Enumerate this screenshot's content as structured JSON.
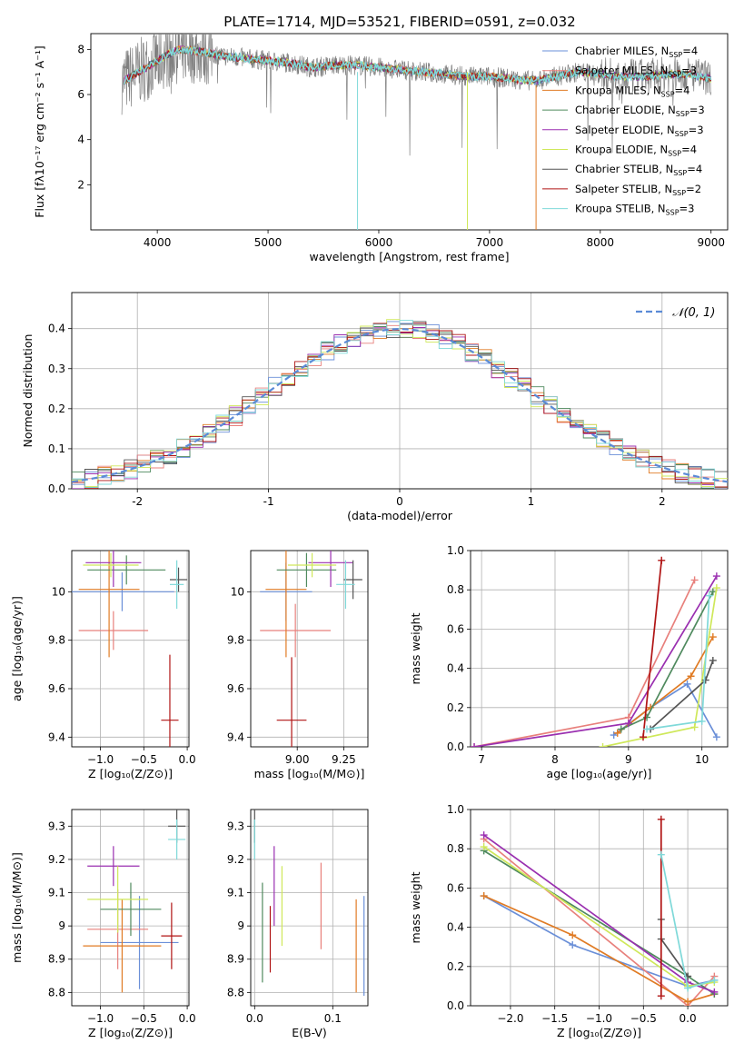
{
  "title": "PLATE=1714, MJD=53521, FIBERID=0591, z=0.032",
  "models": [
    {
      "name": "Chabrier MILES",
      "nssp": "4",
      "color": "#6a8fd8"
    },
    {
      "name": "Salpeter MILES",
      "nssp": "3",
      "color": "#e8807c"
    },
    {
      "name": "Kroupa MILES",
      "nssp": "4",
      "color": "#e07b24"
    },
    {
      "name": "Chabrier ELODIE",
      "nssp": "3",
      "color": "#4f8a5e"
    },
    {
      "name": "Salpeter ELODIE",
      "nssp": "3",
      "color": "#9a2fb0"
    },
    {
      "name": "Kroupa ELODIE",
      "nssp": "4",
      "color": "#cfe85a"
    },
    {
      "name": "Chabrier STELIB",
      "nssp": "4",
      "color": "#555555"
    },
    {
      "name": "Salpeter STELIB",
      "nssp": "2",
      "color": "#b01414"
    },
    {
      "name": "Kroupa STELIB",
      "nssp": "3",
      "color": "#7fd9d9"
    }
  ],
  "chart_data": [
    {
      "id": "spectrum",
      "type": "line",
      "xlabel": "wavelength [Angstrom, rest frame]",
      "ylabel": "Flux [fλ10⁻¹⁷ erg cm⁻² s⁻¹ A⁻¹]",
      "xlim": [
        3400,
        9150
      ],
      "ylim": [
        0.0,
        8.7
      ],
      "xticks": [
        4000,
        5000,
        6000,
        7000,
        8000,
        9000
      ],
      "yticks": [
        2,
        4,
        6,
        8
      ],
      "legend": "top-right",
      "x": [
        3700,
        3800,
        3900,
        4000,
        4100,
        4200,
        4400,
        4600,
        4800,
        5000,
        5200,
        5400,
        5600,
        5800,
        6000,
        6200,
        6400,
        6600,
        6800,
        7000,
        7200,
        7400,
        7600,
        7800,
        8000,
        8200,
        8400,
        8600,
        8800,
        9000
      ],
      "model_flux": [
        6.6,
        6.9,
        7.2,
        7.5,
        7.8,
        8.0,
        7.9,
        7.7,
        7.6,
        7.5,
        7.4,
        7.2,
        7.3,
        7.3,
        7.2,
        7.1,
        7.0,
        6.9,
        6.8,
        6.8,
        6.7,
        6.6,
        6.8,
        7.0,
        6.9,
        6.8,
        6.8,
        6.9,
        6.9,
        6.7
      ]
    },
    {
      "id": "residuals",
      "type": "bar",
      "xlabel": "(data-model)/error",
      "ylabel": "Normed distribution",
      "xlim": [
        -2.5,
        2.5
      ],
      "ylim": [
        0,
        0.49
      ],
      "xticks": [
        -2,
        -1,
        0,
        1,
        2
      ],
      "yticks": [
        0.0,
        0.1,
        0.2,
        0.3,
        0.4
      ],
      "legend_label": "𝒩(0, 1)",
      "legend": "top-right",
      "grid": true
    },
    {
      "id": "age_vs_Z",
      "type": "scatter",
      "xlabel": "Z [log₁₀(Z/Z⊙)]",
      "ylabel": "age  [log₁₀(age/yr)]",
      "xlim": [
        -1.33,
        0.02
      ],
      "ylim": [
        9.36,
        10.17
      ],
      "xticks": [
        -1.0,
        -0.5,
        0.0
      ],
      "xticklabels": [
        "−1.0",
        "−0.5",
        "0.0"
      ],
      "yticks": [
        9.4,
        9.6,
        9.8,
        10.0
      ],
      "grid": true,
      "points": [
        {
          "model": 0,
          "x": -0.75,
          "y": 10.0,
          "xerr": 0.6,
          "yerr": 0.08
        },
        {
          "model": 1,
          "x": -0.85,
          "y": 9.84,
          "xerr": 0.4,
          "yerr": 0.08
        },
        {
          "model": 2,
          "x": -0.9,
          "y": 10.01,
          "xerr": 0.35,
          "yerr": 0.28
        },
        {
          "model": 3,
          "x": -0.7,
          "y": 10.09,
          "xerr": 0.45,
          "yerr": 0.06
        },
        {
          "model": 4,
          "x": -0.85,
          "y": 10.12,
          "xerr": 0.32,
          "yerr": 0.1
        },
        {
          "model": 5,
          "x": -0.88,
          "y": 10.11,
          "xerr": 0.32,
          "yerr": 0.05
        },
        {
          "model": 6,
          "x": -0.1,
          "y": 10.05,
          "xerr": 0.1,
          "yerr": 0.05
        },
        {
          "model": 7,
          "x": -0.2,
          "y": 9.47,
          "xerr": 0.1,
          "yerr": 0.27
        },
        {
          "model": 8,
          "x": -0.12,
          "y": 10.03,
          "xerr": 0.08,
          "yerr": 0.1
        }
      ]
    },
    {
      "id": "age_vs_mass",
      "type": "scatter",
      "xlabel": "mass [log₁₀(M/M⊙)]",
      "ylabel": "",
      "xlim": [
        8.75,
        9.38
      ],
      "ylim": [
        9.36,
        10.17
      ],
      "xticks": [
        9.0,
        9.25
      ],
      "xticklabels": [
        "9.00",
        "9.25"
      ],
      "yticks": [
        9.4,
        9.6,
        9.8,
        10.0
      ],
      "grid": true,
      "points": [
        {
          "model": 0,
          "x": 8.94,
          "y": 10.0,
          "xerr": 0.14,
          "yerr": 0.12
        },
        {
          "model": 1,
          "x": 8.99,
          "y": 9.84,
          "xerr": 0.19,
          "yerr": 0.11
        },
        {
          "model": 2,
          "x": 8.94,
          "y": 10.01,
          "xerr": 0.11,
          "yerr": 0.28
        },
        {
          "model": 3,
          "x": 9.05,
          "y": 10.09,
          "xerr": 0.16,
          "yerr": 0.07
        },
        {
          "model": 4,
          "x": 9.18,
          "y": 10.12,
          "xerr": 0.12,
          "yerr": 0.1
        },
        {
          "model": 5,
          "x": 9.08,
          "y": 10.11,
          "xerr": 0.13,
          "yerr": 0.05
        },
        {
          "model": 6,
          "x": 9.3,
          "y": 10.05,
          "xerr": 0.05,
          "yerr": 0.08
        },
        {
          "model": 7,
          "x": 8.97,
          "y": 9.47,
          "xerr": 0.08,
          "yerr": 0.26
        },
        {
          "model": 8,
          "x": 9.26,
          "y": 10.03,
          "xerr": 0.05,
          "yerr": 0.1
        }
      ]
    },
    {
      "id": "weight_vs_age",
      "type": "line",
      "xlabel": "age  [log₁₀(age/yr)]",
      "ylabel": "mass weight",
      "xlim": [
        6.85,
        10.35
      ],
      "ylim": [
        0.0,
        1.0
      ],
      "xticks": [
        7,
        8,
        9,
        10
      ],
      "yticks": [
        0.0,
        0.2,
        0.4,
        0.6,
        0.8,
        1.0
      ],
      "grid": true,
      "series": [
        {
          "model": 0,
          "x": [
            8.8,
            9.3,
            9.8,
            10.2
          ],
          "y": [
            0.06,
            0.2,
            0.32,
            0.05
          ]
        },
        {
          "model": 1,
          "x": [
            6.9,
            9.0,
            9.9
          ],
          "y": [
            0.0,
            0.15,
            0.85
          ]
        },
        {
          "model": 2,
          "x": [
            8.85,
            9.3,
            9.85,
            10.15
          ],
          "y": [
            0.07,
            0.2,
            0.36,
            0.56
          ]
        },
        {
          "model": 3,
          "x": [
            8.9,
            9.25,
            10.15
          ],
          "y": [
            0.09,
            0.15,
            0.79
          ]
        },
        {
          "model": 4,
          "x": [
            6.9,
            9.0,
            10.2
          ],
          "y": [
            0.0,
            0.12,
            0.87
          ]
        },
        {
          "model": 5,
          "x": [
            8.65,
            9.9,
            10.2
          ],
          "y": [
            0.0,
            0.1,
            0.81
          ]
        },
        {
          "model": 6,
          "x": [
            9.3,
            10.05,
            10.15
          ],
          "y": [
            0.09,
            0.34,
            0.44
          ]
        },
        {
          "model": 7,
          "x": [
            9.2,
            9.45
          ],
          "y": [
            0.05,
            0.95
          ]
        },
        {
          "model": 8,
          "x": [
            9.25,
            10.0,
            10.1
          ],
          "y": [
            0.09,
            0.13,
            0.77
          ]
        }
      ]
    },
    {
      "id": "mass_vs_Z",
      "type": "scatter",
      "xlabel": "Z [log₁₀(Z/Z⊙)]",
      "ylabel": "mass [log₁₀(M/M⊙)]",
      "xlim": [
        -1.33,
        0.02
      ],
      "ylim": [
        8.76,
        9.35
      ],
      "xticks": [
        -1.0,
        -0.5,
        0.0
      ],
      "xticklabels": [
        "−1.0",
        "−0.5",
        "0.0"
      ],
      "yticks": [
        8.8,
        8.9,
        9.0,
        9.1,
        9.2,
        9.3
      ],
      "grid": true,
      "points": [
        {
          "model": 0,
          "x": -0.55,
          "y": 8.95,
          "xerr": 0.45,
          "yerr": 0.14
        },
        {
          "model": 1,
          "x": -0.8,
          "y": 8.99,
          "xerr": 0.35,
          "yerr": 0.12
        },
        {
          "model": 2,
          "x": -0.75,
          "y": 8.94,
          "xerr": 0.45,
          "yerr": 0.14
        },
        {
          "model": 3,
          "x": -0.65,
          "y": 9.05,
          "xerr": 0.35,
          "yerr": 0.08
        },
        {
          "model": 4,
          "x": -0.85,
          "y": 9.18,
          "xerr": 0.3,
          "yerr": 0.06
        },
        {
          "model": 5,
          "x": -0.8,
          "y": 9.08,
          "xerr": 0.35,
          "yerr": 0.1
        },
        {
          "model": 6,
          "x": -0.12,
          "y": 9.3,
          "xerr": 0.1,
          "yerr": 0.05
        },
        {
          "model": 7,
          "x": -0.18,
          "y": 8.97,
          "xerr": 0.12,
          "yerr": 0.1
        },
        {
          "model": 8,
          "x": -0.12,
          "y": 9.26,
          "xerr": 0.1,
          "yerr": 0.06
        }
      ]
    },
    {
      "id": "mass_vs_ebv",
      "type": "scatter",
      "xlabel": "E(B-V)",
      "ylabel": "",
      "xlim": [
        -0.005,
        0.145
      ],
      "ylim": [
        8.76,
        9.35
      ],
      "xticks": [
        0.0,
        0.1
      ],
      "xticklabels": [
        "0.0",
        "0.1"
      ],
      "yticks": [
        8.8,
        8.9,
        9.0,
        9.1,
        9.2,
        9.3
      ],
      "grid": true,
      "points": [
        {
          "model": 0,
          "x": 0.14,
          "y": 8.94,
          "xerr": 0,
          "yerr": 0.15
        },
        {
          "model": 1,
          "x": 0.085,
          "y": 9.06,
          "xerr": 0,
          "yerr": 0.13
        },
        {
          "model": 2,
          "x": 0.13,
          "y": 8.94,
          "xerr": 0,
          "yerr": 0.14
        },
        {
          "model": 3,
          "x": 0.01,
          "y": 8.98,
          "xerr": 0,
          "yerr": 0.15
        },
        {
          "model": 4,
          "x": 0.025,
          "y": 9.12,
          "xerr": 0,
          "yerr": 0.12
        },
        {
          "model": 5,
          "x": 0.035,
          "y": 9.06,
          "xerr": 0,
          "yerr": 0.12
        },
        {
          "model": 6,
          "x": 0.0,
          "y": 9.3,
          "xerr": 0,
          "yerr": 0.05
        },
        {
          "model": 7,
          "x": 0.02,
          "y": 8.96,
          "xerr": 0,
          "yerr": 0.1
        },
        {
          "model": 8,
          "x": 0.0,
          "y": 9.26,
          "xerr": 0,
          "yerr": 0.06
        }
      ]
    },
    {
      "id": "weight_vs_Z",
      "type": "line",
      "xlabel": "Z [log₁₀(Z/Z⊙)]",
      "ylabel": "mass weight",
      "xlim": [
        -2.45,
        0.45
      ],
      "ylim": [
        0.0,
        1.0
      ],
      "xticks": [
        -2.0,
        -1.5,
        -1.0,
        -0.5,
        0.0
      ],
      "xticklabels": [
        "−2.0",
        "−1.5",
        "−1.0",
        "−0.5",
        "0.0"
      ],
      "yticks": [
        0.0,
        0.2,
        0.4,
        0.6,
        0.8,
        1.0
      ],
      "grid": true,
      "series": [
        {
          "model": 0,
          "x": [
            -2.3,
            -1.3,
            0.0,
            0.3
          ],
          "y": [
            0.56,
            0.31,
            0.1,
            0.13
          ]
        },
        {
          "model": 1,
          "x": [
            -2.3,
            0.0,
            0.3
          ],
          "y": [
            0.85,
            0.0,
            0.15
          ]
        },
        {
          "model": 2,
          "x": [
            -2.3,
            -1.3,
            0.0,
            0.3
          ],
          "y": [
            0.56,
            0.36,
            0.02,
            0.06
          ]
        },
        {
          "model": 3,
          "x": [
            -2.3,
            0.0,
            0.3
          ],
          "y": [
            0.79,
            0.15,
            0.06
          ]
        },
        {
          "model": 4,
          "x": [
            -2.3,
            0.0,
            0.3
          ],
          "y": [
            0.87,
            0.12,
            0.07
          ]
        },
        {
          "model": 5,
          "x": [
            -2.3,
            0.0,
            0.3
          ],
          "y": [
            0.81,
            0.1,
            0.12
          ]
        },
        {
          "model": 6,
          "x": [
            -0.3,
            -0.3,
            0.0
          ],
          "y": [
            0.44,
            0.34,
            0.15
          ]
        },
        {
          "model": 7,
          "x": [
            -0.3,
            -0.3
          ],
          "y": [
            0.95,
            0.05
          ]
        },
        {
          "model": 8,
          "x": [
            -0.3,
            0.0,
            0.3
          ],
          "y": [
            0.77,
            0.09,
            0.13
          ]
        }
      ]
    }
  ]
}
